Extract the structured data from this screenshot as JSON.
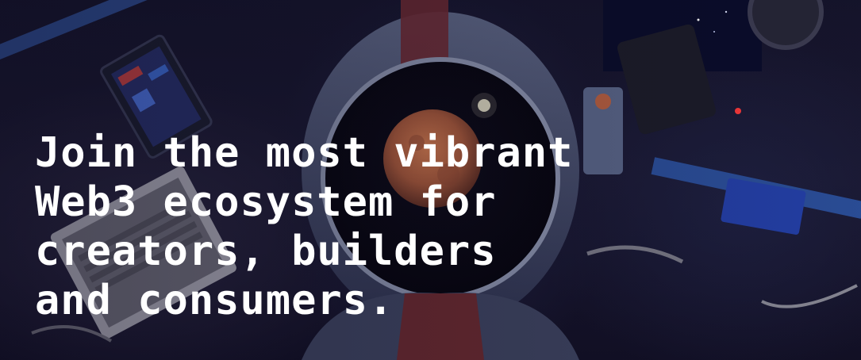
{
  "hero": {
    "background_image": "astronaut-in-spacecraft-cockpit-with-planet-reflected-in-visor",
    "headline_lines": [
      "Join the most vibrant",
      "Web3 ecosystem for",
      "creators, builders",
      "and consumers."
    ]
  },
  "colors": {
    "headline_text": "#ffffff",
    "background_dark": "#15142b",
    "planet": "#b8633f",
    "helmet_stripe": "#7a2b2e"
  }
}
